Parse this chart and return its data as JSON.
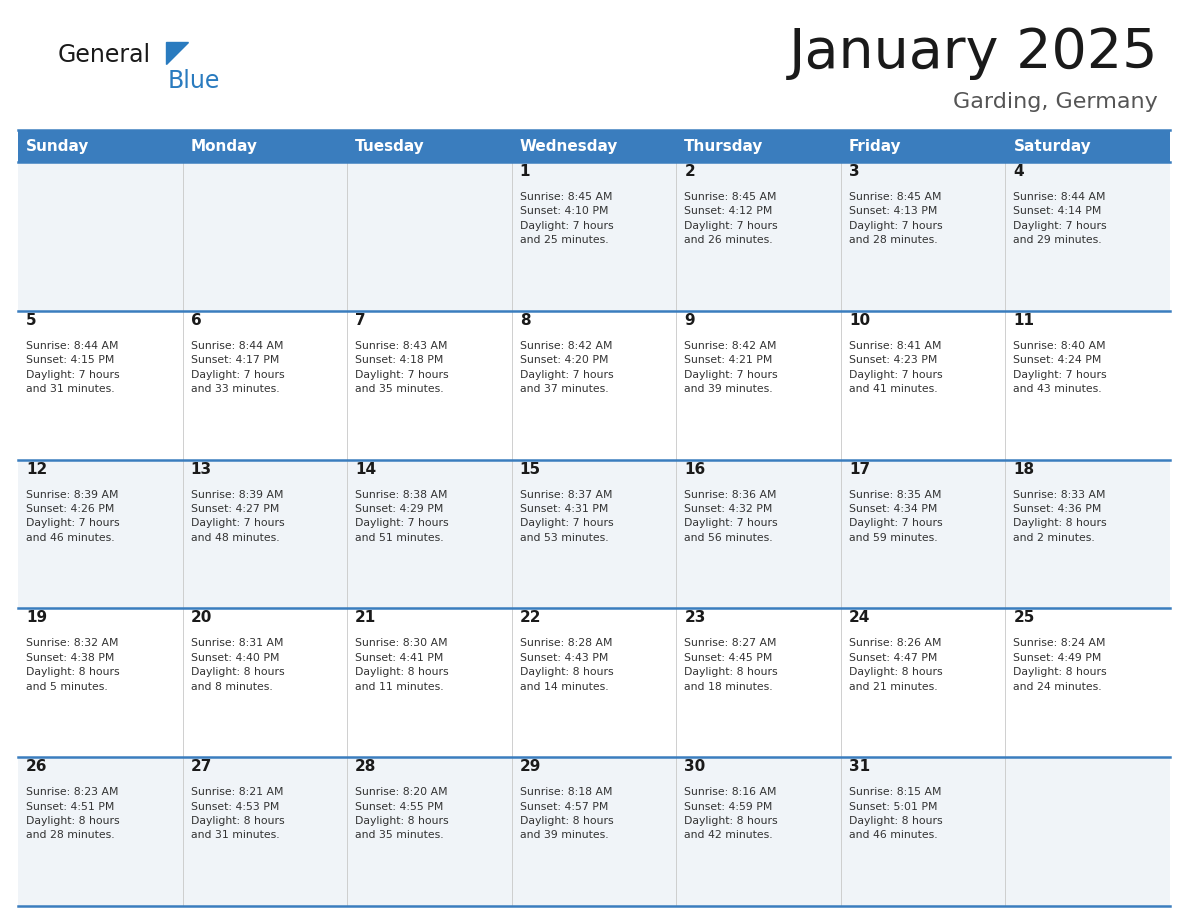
{
  "title": "January 2025",
  "subtitle": "Garding, Germany",
  "header_bg_color": "#3a7dbe",
  "header_text_color": "#ffffff",
  "cell_bg_even": "#f0f4f8",
  "cell_bg_odd": "#ffffff",
  "border_color": "#3a7dbe",
  "day_names": [
    "Sunday",
    "Monday",
    "Tuesday",
    "Wednesday",
    "Thursday",
    "Friday",
    "Saturday"
  ],
  "title_color": "#1a1a1a",
  "subtitle_color": "#555555",
  "day_num_color": "#1a1a1a",
  "info_color": "#333333",
  "logo_general_color": "#1a1a1a",
  "logo_blue_color": "#2a7bbf",
  "calendar": [
    [
      {
        "day": 0,
        "info": ""
      },
      {
        "day": 0,
        "info": ""
      },
      {
        "day": 0,
        "info": ""
      },
      {
        "day": 1,
        "info": "Sunrise: 8:45 AM\nSunset: 4:10 PM\nDaylight: 7 hours\nand 25 minutes."
      },
      {
        "day": 2,
        "info": "Sunrise: 8:45 AM\nSunset: 4:12 PM\nDaylight: 7 hours\nand 26 minutes."
      },
      {
        "day": 3,
        "info": "Sunrise: 8:45 AM\nSunset: 4:13 PM\nDaylight: 7 hours\nand 28 minutes."
      },
      {
        "day": 4,
        "info": "Sunrise: 8:44 AM\nSunset: 4:14 PM\nDaylight: 7 hours\nand 29 minutes."
      }
    ],
    [
      {
        "day": 5,
        "info": "Sunrise: 8:44 AM\nSunset: 4:15 PM\nDaylight: 7 hours\nand 31 minutes."
      },
      {
        "day": 6,
        "info": "Sunrise: 8:44 AM\nSunset: 4:17 PM\nDaylight: 7 hours\nand 33 minutes."
      },
      {
        "day": 7,
        "info": "Sunrise: 8:43 AM\nSunset: 4:18 PM\nDaylight: 7 hours\nand 35 minutes."
      },
      {
        "day": 8,
        "info": "Sunrise: 8:42 AM\nSunset: 4:20 PM\nDaylight: 7 hours\nand 37 minutes."
      },
      {
        "day": 9,
        "info": "Sunrise: 8:42 AM\nSunset: 4:21 PM\nDaylight: 7 hours\nand 39 minutes."
      },
      {
        "day": 10,
        "info": "Sunrise: 8:41 AM\nSunset: 4:23 PM\nDaylight: 7 hours\nand 41 minutes."
      },
      {
        "day": 11,
        "info": "Sunrise: 8:40 AM\nSunset: 4:24 PM\nDaylight: 7 hours\nand 43 minutes."
      }
    ],
    [
      {
        "day": 12,
        "info": "Sunrise: 8:39 AM\nSunset: 4:26 PM\nDaylight: 7 hours\nand 46 minutes."
      },
      {
        "day": 13,
        "info": "Sunrise: 8:39 AM\nSunset: 4:27 PM\nDaylight: 7 hours\nand 48 minutes."
      },
      {
        "day": 14,
        "info": "Sunrise: 8:38 AM\nSunset: 4:29 PM\nDaylight: 7 hours\nand 51 minutes."
      },
      {
        "day": 15,
        "info": "Sunrise: 8:37 AM\nSunset: 4:31 PM\nDaylight: 7 hours\nand 53 minutes."
      },
      {
        "day": 16,
        "info": "Sunrise: 8:36 AM\nSunset: 4:32 PM\nDaylight: 7 hours\nand 56 minutes."
      },
      {
        "day": 17,
        "info": "Sunrise: 8:35 AM\nSunset: 4:34 PM\nDaylight: 7 hours\nand 59 minutes."
      },
      {
        "day": 18,
        "info": "Sunrise: 8:33 AM\nSunset: 4:36 PM\nDaylight: 8 hours\nand 2 minutes."
      }
    ],
    [
      {
        "day": 19,
        "info": "Sunrise: 8:32 AM\nSunset: 4:38 PM\nDaylight: 8 hours\nand 5 minutes."
      },
      {
        "day": 20,
        "info": "Sunrise: 8:31 AM\nSunset: 4:40 PM\nDaylight: 8 hours\nand 8 minutes."
      },
      {
        "day": 21,
        "info": "Sunrise: 8:30 AM\nSunset: 4:41 PM\nDaylight: 8 hours\nand 11 minutes."
      },
      {
        "day": 22,
        "info": "Sunrise: 8:28 AM\nSunset: 4:43 PM\nDaylight: 8 hours\nand 14 minutes."
      },
      {
        "day": 23,
        "info": "Sunrise: 8:27 AM\nSunset: 4:45 PM\nDaylight: 8 hours\nand 18 minutes."
      },
      {
        "day": 24,
        "info": "Sunrise: 8:26 AM\nSunset: 4:47 PM\nDaylight: 8 hours\nand 21 minutes."
      },
      {
        "day": 25,
        "info": "Sunrise: 8:24 AM\nSunset: 4:49 PM\nDaylight: 8 hours\nand 24 minutes."
      }
    ],
    [
      {
        "day": 26,
        "info": "Sunrise: 8:23 AM\nSunset: 4:51 PM\nDaylight: 8 hours\nand 28 minutes."
      },
      {
        "day": 27,
        "info": "Sunrise: 8:21 AM\nSunset: 4:53 PM\nDaylight: 8 hours\nand 31 minutes."
      },
      {
        "day": 28,
        "info": "Sunrise: 8:20 AM\nSunset: 4:55 PM\nDaylight: 8 hours\nand 35 minutes."
      },
      {
        "day": 29,
        "info": "Sunrise: 8:18 AM\nSunset: 4:57 PM\nDaylight: 8 hours\nand 39 minutes."
      },
      {
        "day": 30,
        "info": "Sunrise: 8:16 AM\nSunset: 4:59 PM\nDaylight: 8 hours\nand 42 minutes."
      },
      {
        "day": 31,
        "info": "Sunrise: 8:15 AM\nSunset: 5:01 PM\nDaylight: 8 hours\nand 46 minutes."
      },
      {
        "day": 0,
        "info": ""
      }
    ]
  ]
}
